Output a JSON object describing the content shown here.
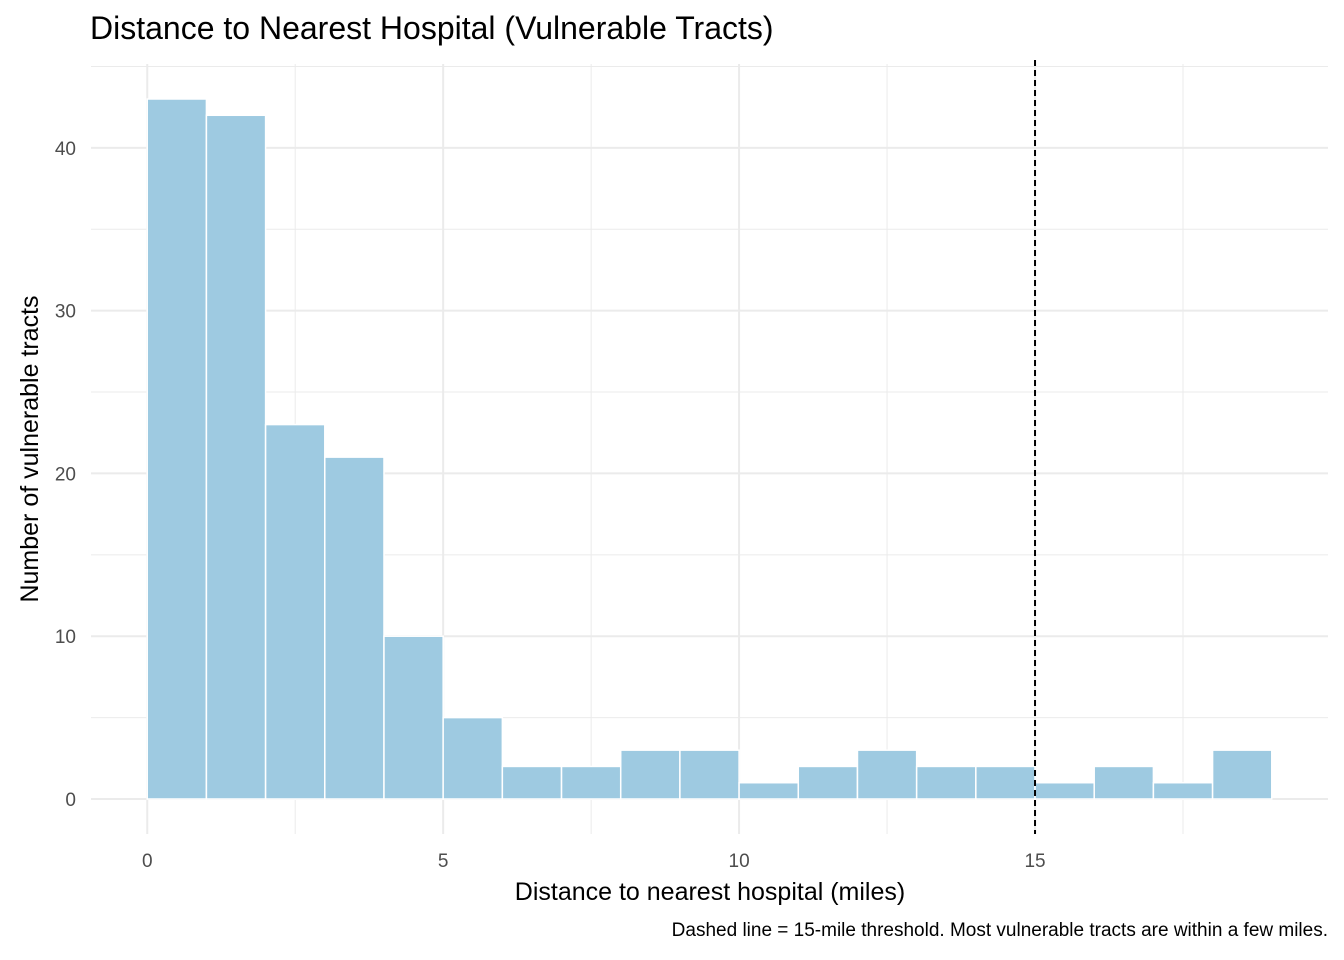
{
  "chart_data": {
    "type": "bar",
    "title": "Distance to Nearest Hospital (Vulnerable Tracts)",
    "xlabel": "Distance to nearest hospital (miles)",
    "ylabel": "Number of vulnerable tracts",
    "caption": "Dashed line = 15-mile threshold. Most vulnerable tracts are within a few miles.",
    "bin_width": 1,
    "bins": [
      {
        "x0": 0,
        "x1": 1,
        "count": 43
      },
      {
        "x0": 1,
        "x1": 2,
        "count": 42
      },
      {
        "x0": 2,
        "x1": 3,
        "count": 23
      },
      {
        "x0": 3,
        "x1": 4,
        "count": 21
      },
      {
        "x0": 4,
        "x1": 5,
        "count": 10
      },
      {
        "x0": 5,
        "x1": 6,
        "count": 5
      },
      {
        "x0": 6,
        "x1": 7,
        "count": 2
      },
      {
        "x0": 7,
        "x1": 8,
        "count": 2
      },
      {
        "x0": 8,
        "x1": 9,
        "count": 3
      },
      {
        "x0": 9,
        "x1": 10,
        "count": 3
      },
      {
        "x0": 10,
        "x1": 11,
        "count": 1
      },
      {
        "x0": 11,
        "x1": 12,
        "count": 2
      },
      {
        "x0": 12,
        "x1": 13,
        "count": 3
      },
      {
        "x0": 13,
        "x1": 14,
        "count": 2
      },
      {
        "x0": 14,
        "x1": 15,
        "count": 2
      },
      {
        "x0": 15,
        "x1": 16,
        "count": 1
      },
      {
        "x0": 16,
        "x1": 17,
        "count": 2
      },
      {
        "x0": 17,
        "x1": 18,
        "count": 1
      },
      {
        "x0": 18,
        "x1": 19,
        "count": 3
      }
    ],
    "xlim": [
      -0.95,
      19.95
    ],
    "ylim": [
      -2.15,
      45.15
    ],
    "x_ticks": [
      0,
      5,
      10,
      15
    ],
    "x_tick_labels": [
      "0",
      "5",
      "10",
      "15"
    ],
    "y_ticks": [
      0,
      10,
      20,
      30,
      40
    ],
    "y_tick_labels": [
      "0",
      "10",
      "20",
      "30",
      "40"
    ],
    "threshold": {
      "x": 15,
      "style": "dashed",
      "color": "#000000"
    },
    "bar_color": "#9ecae1",
    "bar_border_color": "#ffffff",
    "grid": true,
    "grid_color": "#ebebeb",
    "legend": "none"
  }
}
